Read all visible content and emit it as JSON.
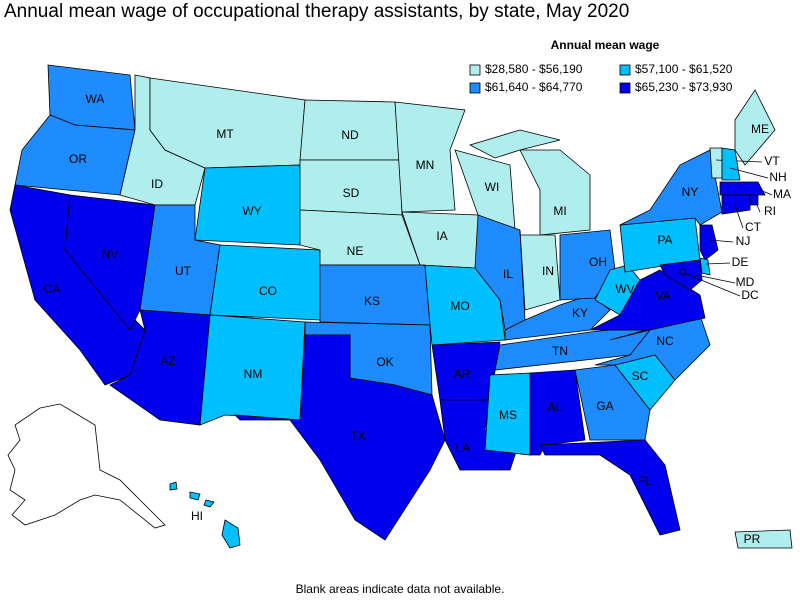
{
  "title": "Annual mean wage of occupational therapy assistants, by state, May 2020",
  "legend": {
    "title": "Annual mean wage",
    "items": [
      {
        "label": "$28,580 - $56,190",
        "color": "#b0eeee"
      },
      {
        "label": "$57,100 - $61,520",
        "color": "#00bfff"
      },
      {
        "label": "$61,640 - $64,770",
        "color": "#1e8cff"
      },
      {
        "label": "$65,230 - $73,930",
        "color": "#0000ee"
      }
    ]
  },
  "states": [
    {
      "label": "WA",
      "color": "#1e8cff"
    },
    {
      "label": "OR",
      "color": "#1e8cff"
    },
    {
      "label": "CA",
      "color": "#0000ee"
    },
    {
      "label": "NV",
      "color": "#0000ee"
    },
    {
      "label": "ID",
      "color": "#b0eeee"
    },
    {
      "label": "MT",
      "color": "#b0eeee"
    },
    {
      "label": "WY",
      "color": "#00bfff"
    },
    {
      "label": "UT",
      "color": "#1e8cff"
    },
    {
      "label": "CO",
      "color": "#00bfff"
    },
    {
      "label": "AZ",
      "color": "#0000ee"
    },
    {
      "label": "NM",
      "color": "#00bfff"
    },
    {
      "label": "ND",
      "color": "#b0eeee"
    },
    {
      "label": "SD",
      "color": "#b0eeee"
    },
    {
      "label": "NE",
      "color": "#b0eeee"
    },
    {
      "label": "KS",
      "color": "#1e8cff"
    },
    {
      "label": "OK",
      "color": "#1e8cff"
    },
    {
      "label": "TX",
      "color": "#0000ee"
    },
    {
      "label": "MN",
      "color": "#b0eeee"
    },
    {
      "label": "IA",
      "color": "#b0eeee"
    },
    {
      "label": "MO",
      "color": "#00bfff"
    },
    {
      "label": "AR",
      "color": "#0000ee"
    },
    {
      "label": "LA",
      "color": "#0000ee"
    },
    {
      "label": "WI",
      "color": "#b0eeee"
    },
    {
      "label": "IL",
      "color": "#1e8cff"
    },
    {
      "label": "MS",
      "color": "#00bfff"
    },
    {
      "label": "MI",
      "color": "#b0eeee"
    },
    {
      "label": "IN",
      "color": "#b0eeee"
    },
    {
      "label": "KY",
      "color": "#1e8cff"
    },
    {
      "label": "TN",
      "color": "#1e8cff"
    },
    {
      "label": "AL",
      "color": "#0000ee"
    },
    {
      "label": "OH",
      "color": "#1e8cff"
    },
    {
      "label": "WV",
      "color": "#00bfff"
    },
    {
      "label": "GA",
      "color": "#1e8cff"
    },
    {
      "label": "FL",
      "color": "#0000ee"
    },
    {
      "label": "SC",
      "color": "#00bfff"
    },
    {
      "label": "NC",
      "color": "#1e8cff"
    },
    {
      "label": "VA",
      "color": "#0000ee"
    },
    {
      "label": "PA",
      "color": "#00bfff"
    },
    {
      "label": "NY",
      "color": "#1e8cff"
    },
    {
      "label": "ME",
      "color": "#b0eeee"
    },
    {
      "label": "VT",
      "color": "#b0eeee"
    },
    {
      "label": "NH",
      "color": "#00bfff"
    },
    {
      "label": "MA",
      "color": "#0000ee"
    },
    {
      "label": "RI",
      "color": "#0000ee"
    },
    {
      "label": "CT",
      "color": "#0000ee"
    },
    {
      "label": "NJ",
      "color": "#0000ee"
    },
    {
      "label": "DE",
      "color": "#00bfff"
    },
    {
      "label": "MD",
      "color": "#0000ee"
    },
    {
      "label": "DC",
      "color": "#0000ee"
    },
    {
      "label": "HI",
      "color": "#00bfff"
    },
    {
      "label": "PR",
      "color": "#b0eeee"
    }
  ],
  "footnote": "Blank areas indicate data not available."
}
